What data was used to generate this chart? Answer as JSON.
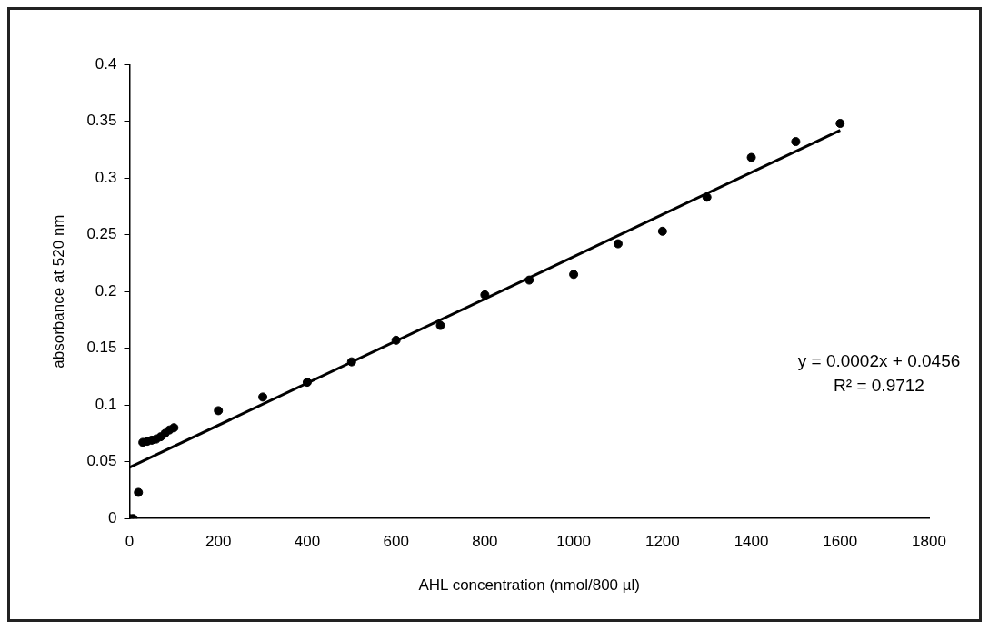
{
  "chart_data": {
    "type": "scatter",
    "xlabel": "AHL concentration (nmol/800 µl)",
    "ylabel": "absorbance at 520 nm",
    "xlim": [
      0,
      1800
    ],
    "xticks": [
      0,
      200,
      400,
      600,
      800,
      1000,
      1200,
      1400,
      1600,
      1800
    ],
    "ylim": [
      0,
      0.4
    ],
    "yticks": [
      0,
      0.05,
      0.1,
      0.15,
      0.2,
      0.25,
      0.3,
      0.35,
      0.4
    ],
    "grid": false,
    "legend": false,
    "marker": "circle",
    "series": [
      {
        "type": "scatter",
        "color": "#000000",
        "x": [
          0,
          8,
          20,
          30,
          40,
          50,
          60,
          70,
          80,
          90,
          100,
          200,
          300,
          400,
          500,
          600,
          700,
          800,
          900,
          1000,
          1100,
          1200,
          1300,
          1400,
          1500,
          1600
        ],
        "values": [
          0,
          0,
          0.023,
          0.067,
          0.068,
          0.069,
          0.07,
          0.072,
          0.075,
          0.078,
          0.08,
          0.095,
          0.107,
          0.12,
          0.138,
          0.157,
          0.17,
          0.197,
          0.21,
          0.215,
          0.242,
          0.253,
          0.283,
          0.318,
          0.332,
          0.348
        ]
      },
      {
        "type": "line",
        "color": "#000000",
        "marker": "none",
        "x": [
          0,
          1600
        ],
        "values": [
          0.045,
          0.342
        ]
      }
    ],
    "annotations": [
      "y = 0.0002x + 0.0456",
      "R² = 0.9712"
    ]
  }
}
